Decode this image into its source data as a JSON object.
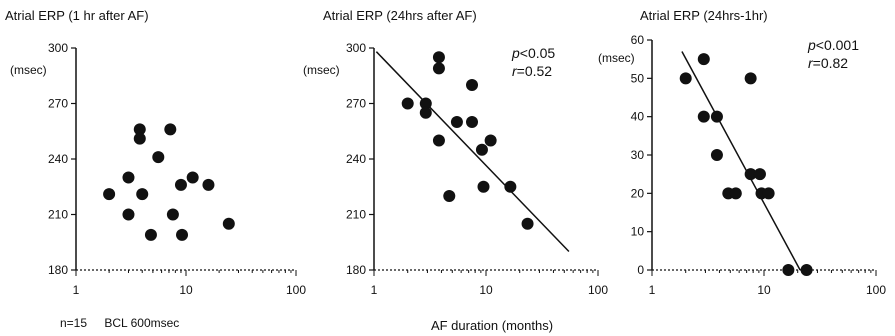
{
  "chart_data": [
    {
      "type": "scatter",
      "title": "Atrial ERP (1 hr after AF)",
      "ylabel": "(msec)",
      "xscale": "log",
      "xlim": [
        1,
        100
      ],
      "ylim": [
        180,
        300
      ],
      "yticks": [
        180,
        210,
        240,
        270,
        300
      ],
      "xticks": [
        1,
        10,
        100
      ],
      "stats": [],
      "trendline": null,
      "points": [
        {
          "x": 2.0,
          "y": 221
        },
        {
          "x": 3.0,
          "y": 230
        },
        {
          "x": 3.0,
          "y": 210
        },
        {
          "x": 3.8,
          "y": 256
        },
        {
          "x": 3.8,
          "y": 251
        },
        {
          "x": 4.0,
          "y": 221
        },
        {
          "x": 4.8,
          "y": 199
        },
        {
          "x": 5.6,
          "y": 241
        },
        {
          "x": 7.2,
          "y": 256
        },
        {
          "x": 7.6,
          "y": 210
        },
        {
          "x": 9.0,
          "y": 226
        },
        {
          "x": 9.2,
          "y": 199
        },
        {
          "x": 11.5,
          "y": 230
        },
        {
          "x": 16.0,
          "y": 226
        },
        {
          "x": 24.5,
          "y": 205
        }
      ]
    },
    {
      "type": "scatter",
      "title": "Atrial ERP (24hrs after AF)",
      "ylabel": "(msec)",
      "xlabel": "AF duration (months)",
      "xscale": "log",
      "xlim": [
        1,
        100
      ],
      "ylim": [
        180,
        300
      ],
      "yticks": [
        180,
        210,
        240,
        270,
        300
      ],
      "xticks": [
        1,
        10,
        100
      ],
      "stats": [
        {
          "italic": "p",
          "rest": "<0.05"
        },
        {
          "italic": "r",
          "rest": "=0.52"
        }
      ],
      "trendline": [
        [
          1.05,
          298
        ],
        [
          55,
          190
        ]
      ],
      "points": [
        {
          "x": 2.0,
          "y": 270
        },
        {
          "x": 2.9,
          "y": 270
        },
        {
          "x": 2.9,
          "y": 265
        },
        {
          "x": 3.8,
          "y": 295
        },
        {
          "x": 3.8,
          "y": 289
        },
        {
          "x": 3.8,
          "y": 250
        },
        {
          "x": 4.7,
          "y": 220
        },
        {
          "x": 5.5,
          "y": 260
        },
        {
          "x": 7.5,
          "y": 280
        },
        {
          "x": 7.5,
          "y": 260
        },
        {
          "x": 9.2,
          "y": 245
        },
        {
          "x": 9.5,
          "y": 225
        },
        {
          "x": 11.0,
          "y": 250
        },
        {
          "x": 16.5,
          "y": 225
        },
        {
          "x": 23.5,
          "y": 205
        }
      ]
    },
    {
      "type": "scatter",
      "title": "Atrial ERP (24hrs-1hr)",
      "ylabel": "(msec)",
      "xscale": "log",
      "xlim": [
        1,
        100
      ],
      "ylim": [
        0,
        60
      ],
      "yticks": [
        0,
        10,
        20,
        30,
        40,
        50,
        60
      ],
      "xticks": [
        1,
        10,
        100
      ],
      "stats": [
        {
          "italic": "p",
          "rest": "<0.001"
        },
        {
          "italic": "r",
          "rest": "=0.82"
        }
      ],
      "trendline": [
        [
          1.85,
          57
        ],
        [
          21,
          0
        ]
      ],
      "points": [
        {
          "x": 2.0,
          "y": 50
        },
        {
          "x": 2.9,
          "y": 55
        },
        {
          "x": 2.9,
          "y": 40
        },
        {
          "x": 3.8,
          "y": 40
        },
        {
          "x": 3.8,
          "y": 30
        },
        {
          "x": 4.8,
          "y": 20
        },
        {
          "x": 5.6,
          "y": 20
        },
        {
          "x": 7.6,
          "y": 50
        },
        {
          "x": 7.6,
          "y": 25
        },
        {
          "x": 9.2,
          "y": 25
        },
        {
          "x": 9.5,
          "y": 20
        },
        {
          "x": 11.0,
          "y": 20
        },
        {
          "x": 16.5,
          "y": 0
        },
        {
          "x": 24.0,
          "y": 0
        }
      ]
    }
  ],
  "notes": {
    "n": "n=15",
    "bcl": "BCL 600msec"
  }
}
